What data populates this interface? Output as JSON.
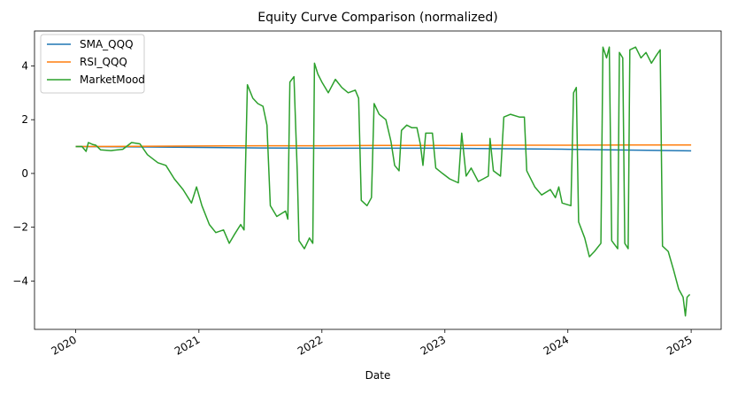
{
  "chart_data": {
    "type": "line",
    "title": "Equity Curve Comparison (normalized)",
    "xlabel": "Date",
    "ylabel": "",
    "x_range": [
      "2019-09-01",
      "2025-03-31"
    ],
    "ylim": [
      -5.8,
      5.3
    ],
    "x_ticks": [
      {
        "date": "2020-01-01",
        "label": "2020"
      },
      {
        "date": "2021-01-01",
        "label": "2021"
      },
      {
        "date": "2022-01-01",
        "label": "2022"
      },
      {
        "date": "2023-01-01",
        "label": "2023"
      },
      {
        "date": "2024-01-01",
        "label": "2024"
      },
      {
        "date": "2025-01-01",
        "label": "2025"
      }
    ],
    "y_ticks": [
      {
        "value": 4,
        "label": "4"
      },
      {
        "value": 2,
        "label": "2"
      },
      {
        "value": 0,
        "label": "0"
      },
      {
        "value": -2,
        "label": "−2"
      },
      {
        "value": -4,
        "label": "−4"
      }
    ],
    "grid": false,
    "legend_position": "top-left",
    "series": [
      {
        "name": "SMA_QQQ",
        "color": "#1f77b4",
        "points": [
          [
            "2020-01-01",
            1.0
          ],
          [
            "2020-07-01",
            0.99
          ],
          [
            "2021-01-01",
            0.97
          ],
          [
            "2021-07-01",
            0.95
          ],
          [
            "2022-01-01",
            0.94
          ],
          [
            "2022-07-01",
            0.94
          ],
          [
            "2023-01-01",
            0.94
          ],
          [
            "2023-07-01",
            0.92
          ],
          [
            "2024-01-01",
            0.9
          ],
          [
            "2024-07-01",
            0.87
          ],
          [
            "2025-01-01",
            0.84
          ]
        ]
      },
      {
        "name": "RSI_QQQ",
        "color": "#ff7f0e",
        "points": [
          [
            "2020-01-01",
            1.0
          ],
          [
            "2020-07-01",
            1.01
          ],
          [
            "2021-01-01",
            1.02
          ],
          [
            "2021-07-01",
            1.03
          ],
          [
            "2022-01-01",
            1.03
          ],
          [
            "2022-07-01",
            1.04
          ],
          [
            "2023-01-01",
            1.04
          ],
          [
            "2023-07-01",
            1.05
          ],
          [
            "2024-01-01",
            1.05
          ],
          [
            "2024-07-01",
            1.06
          ],
          [
            "2025-01-01",
            1.06
          ]
        ]
      },
      {
        "name": "MarketMood",
        "color": "#2ca02c",
        "points": [
          [
            "2020-01-01",
            1.0
          ],
          [
            "2020-01-20",
            1.0
          ],
          [
            "2020-02-01",
            0.82
          ],
          [
            "2020-02-08",
            1.15
          ],
          [
            "2020-02-20",
            1.08
          ],
          [
            "2020-03-01",
            1.05
          ],
          [
            "2020-03-15",
            0.88
          ],
          [
            "2020-04-15",
            0.85
          ],
          [
            "2020-05-20",
            0.9
          ],
          [
            "2020-06-15",
            1.15
          ],
          [
            "2020-07-10",
            1.1
          ],
          [
            "2020-08-01",
            0.7
          ],
          [
            "2020-09-01",
            0.4
          ],
          [
            "2020-09-25",
            0.3
          ],
          [
            "2020-10-20",
            -0.2
          ],
          [
            "2020-11-15",
            -0.6
          ],
          [
            "2020-12-10",
            -1.1
          ],
          [
            "2020-12-25",
            -0.5
          ],
          [
            "2021-01-10",
            -1.2
          ],
          [
            "2021-02-01",
            -1.9
          ],
          [
            "2021-02-20",
            -2.2
          ],
          [
            "2021-03-15",
            -2.1
          ],
          [
            "2021-04-01",
            -2.6
          ],
          [
            "2021-04-15",
            -2.3
          ],
          [
            "2021-05-05",
            -1.9
          ],
          [
            "2021-05-15",
            -2.1
          ],
          [
            "2021-05-25",
            3.3
          ],
          [
            "2021-06-10",
            2.8
          ],
          [
            "2021-06-25",
            2.6
          ],
          [
            "2021-07-10",
            2.5
          ],
          [
            "2021-07-22",
            1.8
          ],
          [
            "2021-08-01",
            -1.2
          ],
          [
            "2021-08-20",
            -1.6
          ],
          [
            "2021-09-15",
            -1.4
          ],
          [
            "2021-09-22",
            -1.7
          ],
          [
            "2021-09-28",
            3.4
          ],
          [
            "2021-10-10",
            3.6
          ],
          [
            "2021-10-20",
            0.0
          ],
          [
            "2021-10-25",
            -2.5
          ],
          [
            "2021-11-10",
            -2.8
          ],
          [
            "2021-11-25",
            -2.4
          ],
          [
            "2021-12-05",
            -2.6
          ],
          [
            "2021-12-10",
            4.1
          ],
          [
            "2021-12-20",
            3.7
          ],
          [
            "2022-01-01",
            3.4
          ],
          [
            "2022-01-20",
            3.0
          ],
          [
            "2022-02-10",
            3.5
          ],
          [
            "2022-03-01",
            3.2
          ],
          [
            "2022-03-20",
            3.0
          ],
          [
            "2022-04-10",
            3.1
          ],
          [
            "2022-04-20",
            2.8
          ],
          [
            "2022-04-28",
            -1.0
          ],
          [
            "2022-05-15",
            -1.2
          ],
          [
            "2022-05-28",
            -0.9
          ],
          [
            "2022-06-05",
            2.6
          ],
          [
            "2022-06-20",
            2.2
          ],
          [
            "2022-07-10",
            2.0
          ],
          [
            "2022-07-25",
            1.2
          ],
          [
            "2022-08-05",
            0.3
          ],
          [
            "2022-08-18",
            0.1
          ],
          [
            "2022-08-25",
            1.6
          ],
          [
            "2022-09-10",
            1.8
          ],
          [
            "2022-09-25",
            1.7
          ],
          [
            "2022-10-10",
            1.7
          ],
          [
            "2022-10-20",
            1.1
          ],
          [
            "2022-10-28",
            0.3
          ],
          [
            "2022-11-05",
            1.5
          ],
          [
            "2022-11-25",
            1.5
          ],
          [
            "2022-12-05",
            0.2
          ],
          [
            "2022-12-25",
            0.0
          ],
          [
            "2023-01-15",
            -0.2
          ],
          [
            "2023-02-10",
            -0.35
          ],
          [
            "2023-02-20",
            1.5
          ],
          [
            "2023-03-05",
            -0.1
          ],
          [
            "2023-03-20",
            0.2
          ],
          [
            "2023-04-10",
            -0.3
          ],
          [
            "2023-04-25",
            -0.2
          ],
          [
            "2023-05-10",
            -0.1
          ],
          [
            "2023-05-15",
            1.3
          ],
          [
            "2023-05-25",
            0.1
          ],
          [
            "2023-06-15",
            -0.1
          ],
          [
            "2023-06-25",
            2.1
          ],
          [
            "2023-07-15",
            2.2
          ],
          [
            "2023-08-10",
            2.1
          ],
          [
            "2023-08-25",
            2.1
          ],
          [
            "2023-09-01",
            0.1
          ],
          [
            "2023-09-25",
            -0.5
          ],
          [
            "2023-10-15",
            -0.8
          ],
          [
            "2023-11-10",
            -0.6
          ],
          [
            "2023-11-25",
            -0.9
          ],
          [
            "2023-12-05",
            -0.5
          ],
          [
            "2023-12-15",
            -1.1
          ],
          [
            "2024-01-10",
            -1.2
          ],
          [
            "2024-01-18",
            3.0
          ],
          [
            "2024-01-26",
            3.2
          ],
          [
            "2024-02-02",
            -1.8
          ],
          [
            "2024-02-20",
            -2.4
          ],
          [
            "2024-03-05",
            -3.1
          ],
          [
            "2024-03-20",
            -2.9
          ],
          [
            "2024-04-08",
            -2.6
          ],
          [
            "2024-04-14",
            4.7
          ],
          [
            "2024-04-25",
            4.3
          ],
          [
            "2024-05-03",
            4.7
          ],
          [
            "2024-05-10",
            -2.5
          ],
          [
            "2024-05-28",
            -2.8
          ],
          [
            "2024-06-02",
            4.5
          ],
          [
            "2024-06-12",
            4.3
          ],
          [
            "2024-06-18",
            -2.6
          ],
          [
            "2024-06-28",
            -2.8
          ],
          [
            "2024-07-03",
            4.6
          ],
          [
            "2024-07-20",
            4.7
          ],
          [
            "2024-08-05",
            4.3
          ],
          [
            "2024-08-20",
            4.5
          ],
          [
            "2024-09-05",
            4.1
          ],
          [
            "2024-09-20",
            4.4
          ],
          [
            "2024-10-01",
            4.6
          ],
          [
            "2024-10-08",
            -2.7
          ],
          [
            "2024-10-25",
            -2.9
          ],
          [
            "2024-11-10",
            -3.6
          ],
          [
            "2024-11-25",
            -4.3
          ],
          [
            "2024-12-08",
            -4.6
          ],
          [
            "2024-12-15",
            -5.3
          ],
          [
            "2024-12-20",
            -4.6
          ],
          [
            "2024-12-28",
            -4.5
          ]
        ]
      }
    ]
  }
}
